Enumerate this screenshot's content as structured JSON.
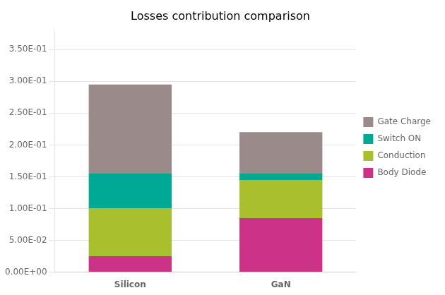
{
  "chart_data": {
    "type": "bar",
    "stacked": true,
    "title": "Losses contribution comparison",
    "categories": [
      "Silicon",
      "GaN"
    ],
    "series": [
      {
        "name": "Body Diode",
        "color": "#cc3388",
        "values": [
          0.025,
          0.085
        ]
      },
      {
        "name": "Conduction",
        "color": "#aabf2e",
        "values": [
          0.075,
          0.06
        ]
      },
      {
        "name": "Switch ON",
        "color": "#00a896",
        "values": [
          0.055,
          0.01
        ]
      },
      {
        "name": "Gate Charge",
        "color": "#9a8a8a",
        "values": [
          0.14,
          0.065
        ]
      }
    ],
    "ylim": [
      0.0,
      0.38
    ],
    "yticks": [
      {
        "value": 0.0,
        "label": "0.00E+00"
      },
      {
        "value": 0.05,
        "label": "5.00E-02"
      },
      {
        "value": 0.1,
        "label": "1.00E-01"
      },
      {
        "value": 0.15,
        "label": "1.50E-01"
      },
      {
        "value": 0.2,
        "label": "2.00E-01"
      },
      {
        "value": 0.25,
        "label": "2.50E-01"
      },
      {
        "value": 0.3,
        "label": "3.00E-01"
      },
      {
        "value": 0.35,
        "label": "3.50E-01"
      }
    ],
    "grid": true,
    "legend": "right"
  }
}
